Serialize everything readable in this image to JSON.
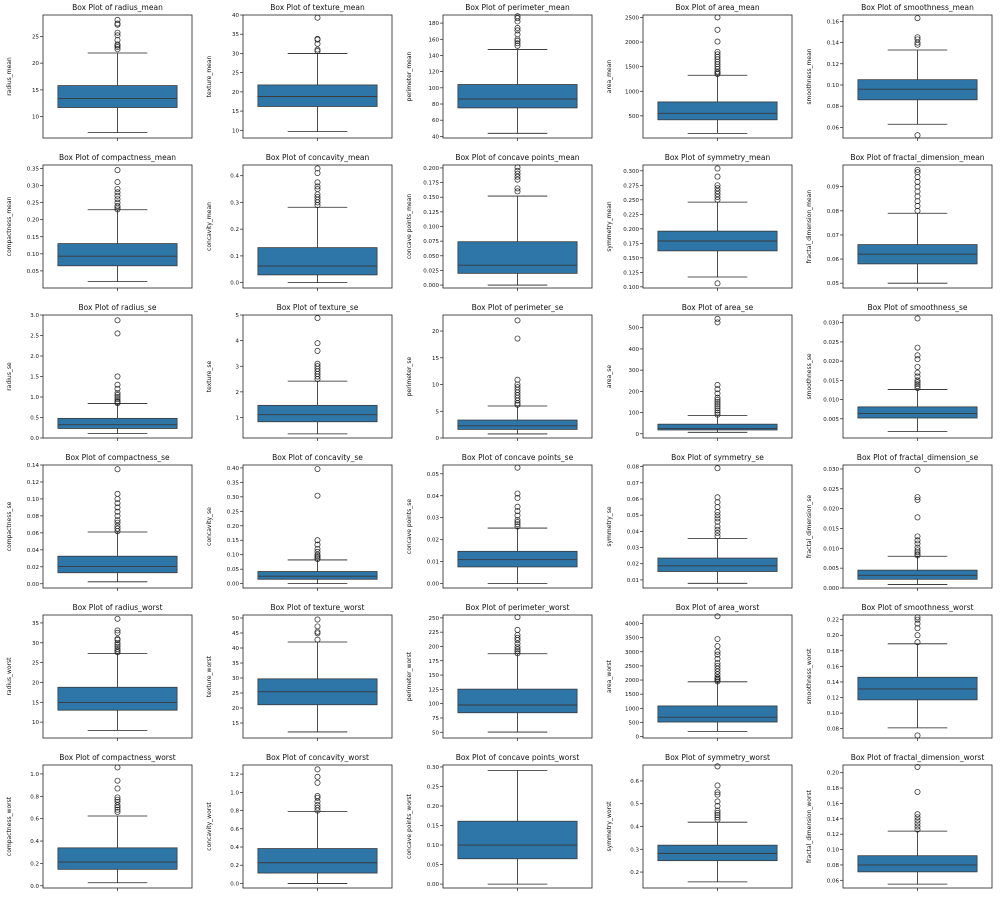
{
  "figure": {
    "box_color": "#2e75a8",
    "line_color": "#222222",
    "columns": 5,
    "rows": 6
  },
  "chart_data": [
    {
      "type": "box",
      "title": "Box Plot of radius_mean",
      "ylabel": "radius_mean",
      "ylim": [
        6,
        29
      ],
      "yticks": [
        10,
        15,
        20,
        25
      ],
      "stats": {
        "min": 7,
        "q1": 11.7,
        "median": 13.4,
        "q3": 15.8,
        "max": 21.9
      },
      "outliers": [
        22.6,
        23.0,
        23.3,
        23.5,
        24.3,
        25.2,
        25.7,
        27.2,
        27.4,
        28.1
      ]
    },
    {
      "type": "box",
      "title": "Box Plot of texture_mean",
      "ylabel": "texture_mean",
      "ylim": [
        8,
        40
      ],
      "yticks": [
        10,
        15,
        20,
        25,
        30,
        35,
        40
      ],
      "stats": {
        "min": 9.7,
        "q1": 16.2,
        "median": 18.8,
        "q3": 21.8,
        "max": 30
      },
      "outliers": [
        30.6,
        31,
        32.5,
        33.6,
        33.8,
        39.3
      ]
    },
    {
      "type": "box",
      "title": "Box Plot of perimeter_mean",
      "ylabel": "perimeter_mean",
      "ylim": [
        38,
        190
      ],
      "yticks": [
        40,
        60,
        80,
        100,
        120,
        140,
        160,
        180
      ],
      "stats": {
        "min": 43.8,
        "q1": 75.2,
        "median": 86.2,
        "q3": 104.1,
        "max": 147.3
      },
      "outliers": [
        152,
        155,
        158,
        160,
        166,
        171,
        174,
        182,
        186,
        188.5
      ]
    },
    {
      "type": "box",
      "title": "Box Plot of area_mean",
      "ylabel": "area_mean",
      "ylim": [
        50,
        2550
      ],
      "yticks": [
        500,
        1000,
        1500,
        2000,
        2500
      ],
      "stats": {
        "min": 143.5,
        "q1": 420,
        "median": 551,
        "q3": 783,
        "max": 1326
      },
      "outliers": [
        1350,
        1380,
        1400,
        1450,
        1500,
        1550,
        1600,
        1650,
        1700,
        1750,
        1800,
        2010,
        2250,
        2501
      ]
    },
    {
      "type": "box",
      "title": "Box Plot of smoothness_mean",
      "ylabel": "smoothness_mean",
      "ylim": [
        0.05,
        0.166
      ],
      "yticks": [
        0.06,
        0.08,
        0.1,
        0.12,
        0.14,
        0.16
      ],
      "stats": {
        "min": 0.063,
        "q1": 0.086,
        "median": 0.096,
        "q3": 0.105,
        "max": 0.133
      },
      "outliers": [
        0.0526,
        0.138,
        0.14,
        0.143,
        0.145,
        0.163
      ]
    },
    {
      "type": "box",
      "title": "Box Plot of compactness_mean",
      "ylabel": "compactness_mean",
      "ylim": [
        0,
        0.36
      ],
      "yticks": [
        0.05,
        0.1,
        0.15,
        0.2,
        0.25,
        0.3,
        0.35
      ],
      "stats": {
        "min": 0.019,
        "q1": 0.065,
        "median": 0.093,
        "q3": 0.13,
        "max": 0.229
      },
      "outliers": [
        0.23,
        0.235,
        0.24,
        0.25,
        0.26,
        0.27,
        0.28,
        0.29,
        0.31,
        0.345
      ]
    },
    {
      "type": "box",
      "title": "Box Plot of concavity_mean",
      "ylabel": "concavity_mean",
      "ylim": [
        -0.02,
        0.44
      ],
      "yticks": [
        0.0,
        0.1,
        0.2,
        0.3,
        0.4
      ],
      "stats": {
        "min": 0,
        "q1": 0.029,
        "median": 0.062,
        "q3": 0.131,
        "max": 0.282
      },
      "outliers": [
        0.29,
        0.3,
        0.31,
        0.32,
        0.33,
        0.35,
        0.36,
        0.375,
        0.41,
        0.427
      ]
    },
    {
      "type": "box",
      "title": "Box Plot of concave points_mean",
      "ylabel": "concave points_mean",
      "ylim": [
        -0.005,
        0.205
      ],
      "yticks": [
        0.0,
        0.025,
        0.05,
        0.075,
        0.1,
        0.125,
        0.15,
        0.175,
        0.2
      ],
      "stats": {
        "min": 0,
        "q1": 0.02,
        "median": 0.034,
        "q3": 0.074,
        "max": 0.152
      },
      "outliers": [
        0.16,
        0.165,
        0.18,
        0.185,
        0.19,
        0.195,
        0.201
      ]
    },
    {
      "type": "box",
      "title": "Box Plot of symmetry_mean",
      "ylabel": "symmetry_mean",
      "ylim": [
        0.098,
        0.31
      ],
      "yticks": [
        0.1,
        0.125,
        0.15,
        0.175,
        0.2,
        0.225,
        0.25,
        0.275,
        0.3
      ],
      "stats": {
        "min": 0.117,
        "q1": 0.162,
        "median": 0.179,
        "q3": 0.196,
        "max": 0.246
      },
      "outliers": [
        0.106,
        0.25,
        0.255,
        0.26,
        0.265,
        0.27,
        0.275,
        0.29,
        0.304
      ]
    },
    {
      "type": "box",
      "title": "Box Plot of fractal_dimension_mean",
      "ylabel": "fractal_dimension_mean",
      "ylim": [
        0.048,
        0.099
      ],
      "yticks": [
        0.05,
        0.06,
        0.07,
        0.08,
        0.09
      ],
      "stats": {
        "min": 0.05,
        "q1": 0.058,
        "median": 0.062,
        "q3": 0.066,
        "max": 0.079
      },
      "outliers": [
        0.08,
        0.082,
        0.084,
        0.086,
        0.088,
        0.09,
        0.092,
        0.094,
        0.096,
        0.097
      ]
    },
    {
      "type": "box",
      "title": "Box Plot of radius_se",
      "ylabel": "radius_se",
      "ylim": [
        0,
        3
      ],
      "yticks": [
        0.0,
        0.5,
        1.0,
        1.5,
        2.0,
        2.5,
        3.0
      ],
      "stats": {
        "min": 0.11,
        "q1": 0.232,
        "median": 0.324,
        "q3": 0.479,
        "max": 0.84
      },
      "outliers": [
        0.85,
        0.88,
        0.9,
        0.95,
        1.0,
        1.05,
        1.1,
        1.2,
        1.3,
        1.5,
        2.55,
        2.87
      ]
    },
    {
      "type": "box",
      "title": "Box Plot of texture_se",
      "ylabel": "texture_se",
      "ylim": [
        0.2,
        5
      ],
      "yticks": [
        1,
        2,
        3,
        4,
        5
      ],
      "stats": {
        "min": 0.36,
        "q1": 0.834,
        "median": 1.108,
        "q3": 1.474,
        "max": 2.42
      },
      "outliers": [
        2.5,
        2.6,
        2.7,
        2.8,
        2.9,
        3.0,
        3.1,
        3.6,
        3.9,
        4.88
      ]
    },
    {
      "type": "box",
      "title": "Box Plot of perimeter_se",
      "ylabel": "perimeter_se",
      "ylim": [
        0,
        23
      ],
      "yticks": [
        0,
        5,
        10,
        15,
        20
      ],
      "stats": {
        "min": 0.757,
        "q1": 1.606,
        "median": 2.287,
        "q3": 3.357,
        "max": 5.98
      },
      "outliers": [
        6.2,
        6.5,
        7,
        7.5,
        8,
        8.5,
        9,
        9.5,
        10,
        10.9,
        18.6,
        21.98
      ]
    },
    {
      "type": "box",
      "title": "Box Plot of area_se",
      "ylabel": "area_se",
      "ylim": [
        -20,
        560
      ],
      "yticks": [
        0,
        100,
        200,
        300,
        400,
        500
      ],
      "stats": {
        "min": 6.8,
        "q1": 17.85,
        "median": 24.5,
        "q3": 45.2,
        "max": 86.2
      },
      "outliers": [
        90,
        100,
        110,
        120,
        130,
        140,
        150,
        160,
        170,
        190,
        210,
        230,
        525,
        542
      ]
    },
    {
      "type": "box",
      "title": "Box Plot of smoothness_se",
      "ylabel": "smoothness_se",
      "ylim": [
        0,
        0.032
      ],
      "yticks": [
        0.005,
        0.01,
        0.015,
        0.02,
        0.025,
        0.03
      ],
      "stats": {
        "min": 0.0017,
        "q1": 0.0052,
        "median": 0.0064,
        "q3": 0.0081,
        "max": 0.0126
      },
      "outliers": [
        0.013,
        0.0135,
        0.014,
        0.0145,
        0.015,
        0.016,
        0.017,
        0.0185,
        0.0205,
        0.0215,
        0.0235,
        0.0311
      ]
    },
    {
      "type": "box",
      "title": "Box Plot of compactness_se",
      "ylabel": "compactness_se",
      "ylim": [
        -0.005,
        0.14
      ],
      "yticks": [
        0.0,
        0.02,
        0.04,
        0.06,
        0.08,
        0.1,
        0.12,
        0.14
      ],
      "stats": {
        "min": 0.0023,
        "q1": 0.013,
        "median": 0.0204,
        "q3": 0.0325,
        "max": 0.061
      },
      "outliers": [
        0.062,
        0.065,
        0.068,
        0.072,
        0.075,
        0.08,
        0.085,
        0.09,
        0.095,
        0.1,
        0.106,
        0.135
      ]
    },
    {
      "type": "box",
      "title": "Box Plot of concavity_se",
      "ylabel": "concavity_se",
      "ylim": [
        -0.015,
        0.41
      ],
      "yticks": [
        0.0,
        0.05,
        0.1,
        0.15,
        0.2,
        0.25,
        0.3,
        0.35,
        0.4
      ],
      "stats": {
        "min": 0,
        "q1": 0.0151,
        "median": 0.0259,
        "q3": 0.042,
        "max": 0.082
      },
      "outliers": [
        0.085,
        0.09,
        0.095,
        0.1,
        0.11,
        0.12,
        0.135,
        0.15,
        0.304,
        0.396
      ]
    },
    {
      "type": "box",
      "title": "Box Plot of concave points_se",
      "ylabel": "concave points_se",
      "ylim": [
        -0.002,
        0.054
      ],
      "yticks": [
        0.0,
        0.01,
        0.02,
        0.03,
        0.04,
        0.05
      ],
      "stats": {
        "min": 0,
        "q1": 0.0076,
        "median": 0.0109,
        "q3": 0.0147,
        "max": 0.0253
      },
      "outliers": [
        0.026,
        0.027,
        0.028,
        0.029,
        0.031,
        0.033,
        0.035,
        0.039,
        0.041,
        0.0528
      ]
    },
    {
      "type": "box",
      "title": "Box Plot of symmetry_se",
      "ylabel": "symmetry_se",
      "ylim": [
        0.005,
        0.081
      ],
      "yticks": [
        0.01,
        0.02,
        0.03,
        0.04,
        0.05,
        0.06,
        0.07,
        0.08
      ],
      "stats": {
        "min": 0.0079,
        "q1": 0.0152,
        "median": 0.0187,
        "q3": 0.0235,
        "max": 0.0356
      },
      "outliers": [
        0.037,
        0.039,
        0.041,
        0.043,
        0.046,
        0.048,
        0.05,
        0.052,
        0.055,
        0.058,
        0.061,
        0.079
      ]
    },
    {
      "type": "box",
      "title": "Box Plot of fractal_dimension_se",
      "ylabel": "fractal_dimension_se",
      "ylim": [
        0,
        0.031
      ],
      "yticks": [
        0.0,
        0.005,
        0.01,
        0.015,
        0.02,
        0.025,
        0.03
      ],
      "stats": {
        "min": 0.0009,
        "q1": 0.0022,
        "median": 0.0032,
        "q3": 0.0045,
        "max": 0.008
      },
      "outliers": [
        0.0082,
        0.0085,
        0.009,
        0.0095,
        0.0102,
        0.0112,
        0.012,
        0.013,
        0.0178,
        0.0222,
        0.0229,
        0.0298
      ]
    },
    {
      "type": "box",
      "title": "Box Plot of radius_worst",
      "ylabel": "radius_worst",
      "ylim": [
        6,
        37
      ],
      "yticks": [
        10,
        15,
        20,
        25,
        30,
        35
      ],
      "stats": {
        "min": 7.93,
        "q1": 13.01,
        "median": 14.97,
        "q3": 18.79,
        "max": 27.3
      },
      "outliers": [
        27.6,
        28,
        28.4,
        29,
        29.5,
        30,
        30.7,
        31,
        32.5,
        33.1,
        36.04
      ]
    },
    {
      "type": "box",
      "title": "Box Plot of texture_worst",
      "ylabel": "texture_worst",
      "ylim": [
        10,
        51
      ],
      "yticks": [
        15,
        20,
        25,
        30,
        35,
        40,
        45,
        50
      ],
      "stats": {
        "min": 12.02,
        "q1": 21.08,
        "median": 25.41,
        "q3": 29.72,
        "max": 42
      },
      "outliers": [
        42.8,
        44.9,
        45.4,
        47.2,
        49.5
      ]
    },
    {
      "type": "box",
      "title": "Box Plot of perimeter_worst",
      "ylabel": "perimeter_worst",
      "ylim": [
        40,
        255
      ],
      "yticks": [
        50,
        75,
        100,
        125,
        150,
        175,
        200,
        225,
        250
      ],
      "stats": {
        "min": 50.4,
        "q1": 84.1,
        "median": 97.7,
        "q3": 125.4,
        "max": 187.3
      },
      "outliers": [
        188,
        192,
        195,
        199,
        205,
        211,
        215,
        220,
        229,
        251.2
      ]
    },
    {
      "type": "box",
      "title": "Box Plot of area_worst",
      "ylabel": "area_worst",
      "ylim": [
        -50,
        4300
      ],
      "yticks": [
        0,
        500,
        1000,
        1500,
        2000,
        2500,
        3000,
        3500,
        4000
      ],
      "stats": {
        "min": 185,
        "q1": 515,
        "median": 686,
        "q3": 1084,
        "max": 1937
      },
      "outliers": [
        1950,
        2000,
        2050,
        2100,
        2200,
        2300,
        2400,
        2500,
        2600,
        2750,
        2900,
        3000,
        3200,
        3450,
        4254
      ]
    },
    {
      "type": "box",
      "title": "Box Plot of smoothness_worst",
      "ylabel": "smoothness_worst",
      "ylim": [
        0.068,
        0.226
      ],
      "yticks": [
        0.08,
        0.1,
        0.12,
        0.14,
        0.16,
        0.18,
        0.2,
        0.22
      ],
      "stats": {
        "min": 0.081,
        "q1": 0.117,
        "median": 0.131,
        "q3": 0.146,
        "max": 0.189
      },
      "outliers": [
        0.0712,
        0.191,
        0.2,
        0.209,
        0.215,
        0.22,
        0.223
      ]
    },
    {
      "type": "box",
      "title": "Box Plot of compactness_worst",
      "ylabel": "compactness_worst",
      "ylim": [
        -0.02,
        1.08
      ],
      "yticks": [
        0.0,
        0.2,
        0.4,
        0.6,
        0.8,
        1.0
      ],
      "stats": {
        "min": 0.027,
        "q1": 0.147,
        "median": 0.212,
        "q3": 0.339,
        "max": 0.624
      },
      "outliers": [
        0.66,
        0.68,
        0.7,
        0.72,
        0.75,
        0.77,
        0.79,
        0.87,
        0.94,
        1.058
      ]
    },
    {
      "type": "box",
      "title": "Box Plot of concavity_worst",
      "ylabel": "concavity_worst",
      "ylim": [
        -0.05,
        1.3
      ],
      "yticks": [
        0.0,
        0.2,
        0.4,
        0.6,
        0.8,
        1.0,
        1.2
      ],
      "stats": {
        "min": 0,
        "q1": 0.114,
        "median": 0.227,
        "q3": 0.383,
        "max": 0.788
      },
      "outliers": [
        0.8,
        0.83,
        0.86,
        0.9,
        0.94,
        0.96,
        1.105,
        1.17,
        1.252
      ]
    },
    {
      "type": "box",
      "title": "Box Plot of concave points_worst",
      "ylabel": "concave points_worst",
      "ylim": [
        -0.01,
        0.305
      ],
      "yticks": [
        0.0,
        0.05,
        0.1,
        0.15,
        0.2,
        0.25,
        0.3
      ],
      "stats": {
        "min": 0,
        "q1": 0.0649,
        "median": 0.0999,
        "q3": 0.161,
        "max": 0.291
      },
      "outliers": []
    },
    {
      "type": "box",
      "title": "Box Plot of symmetry_worst",
      "ylabel": "symmetry_worst",
      "ylim": [
        0.13,
        0.67
      ],
      "yticks": [
        0.2,
        0.3,
        0.4,
        0.5,
        0.6
      ],
      "stats": {
        "min": 0.157,
        "q1": 0.25,
        "median": 0.282,
        "q3": 0.318,
        "max": 0.419
      },
      "outliers": [
        0.43,
        0.44,
        0.45,
        0.46,
        0.47,
        0.49,
        0.51,
        0.54,
        0.55,
        0.58,
        0.664
      ]
    },
    {
      "type": "box",
      "title": "Box Plot of fractal_dimension_worst",
      "ylabel": "fractal_dimension_worst",
      "ylim": [
        0.05,
        0.21
      ],
      "yticks": [
        0.06,
        0.08,
        0.1,
        0.12,
        0.14,
        0.16,
        0.18,
        0.2
      ],
      "stats": {
        "min": 0.055,
        "q1": 0.071,
        "median": 0.08,
        "q3": 0.092,
        "max": 0.124
      },
      "outliers": [
        0.126,
        0.13,
        0.134,
        0.138,
        0.142,
        0.146,
        0.175,
        0.2075
      ]
    }
  ]
}
